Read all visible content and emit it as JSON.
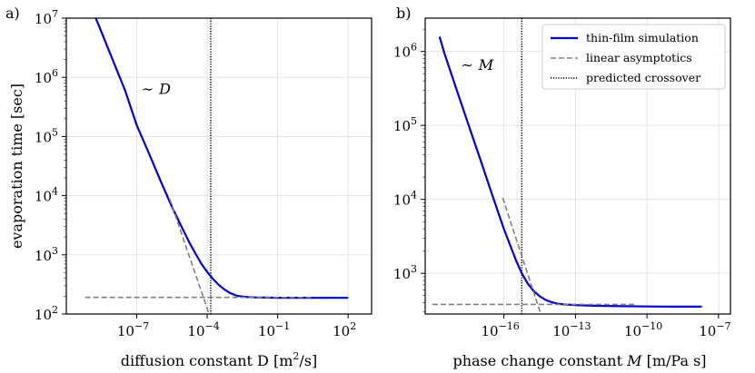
{
  "chart_data": [
    {
      "panel_label": "a)",
      "type": "line",
      "xscale": "log",
      "yscale": "log",
      "xlabel_text": "diffusion constant D [m",
      "xlabel_sup": "2",
      "xlabel_end": "/s]",
      "ylabel": "evaporation time [sec]",
      "xlim_log10": [
        -10,
        3
      ],
      "ylim_log10": [
        2,
        7
      ],
      "x_ticks": [
        {
          "exp": -7,
          "base": "10",
          "sup": "−7"
        },
        {
          "exp": -4,
          "base": "10",
          "sup": "−4"
        },
        {
          "exp": -1,
          "base": "10",
          "sup": "−1"
        },
        {
          "exp": 2,
          "base": "10",
          "sup": "2"
        }
      ],
      "y_ticks": [
        {
          "exp": 2,
          "base": "10",
          "sup": "2"
        },
        {
          "exp": 3,
          "base": "10",
          "sup": "3"
        },
        {
          "exp": 4,
          "base": "10",
          "sup": "4"
        },
        {
          "exp": 5,
          "base": "10",
          "sup": "5"
        },
        {
          "exp": 6,
          "base": "10",
          "sup": "6"
        },
        {
          "exp": 7,
          "base": "10",
          "sup": "7"
        }
      ],
      "annotation": {
        "prefix": "∼",
        "symbol": "D",
        "x_log10": -6.8,
        "y_log10": 5.72
      },
      "crossover_x_log10": -3.85,
      "series": [
        {
          "name": "thin-film simulation",
          "color": "#0000cc",
          "style": "solid",
          "x_log10": [
            -8.8,
            -8.5,
            -8,
            -7.5,
            -7,
            -6.5,
            -6,
            -5.5,
            -5,
            -4.75,
            -4.5,
            -4.25,
            -4,
            -3.75,
            -3.5,
            -3.25,
            -3,
            -2.75,
            -2.5,
            -2.25,
            -2,
            -1.5,
            -1,
            0,
            1,
            2
          ],
          "y_log10": [
            7.05,
            6.76,
            6.27,
            5.78,
            5.19,
            4.73,
            4.26,
            3.81,
            3.4,
            3.2,
            3.02,
            2.85,
            2.71,
            2.59,
            2.49,
            2.41,
            2.35,
            2.31,
            2.295,
            2.285,
            2.28,
            2.277,
            2.275,
            2.275,
            2.275,
            2.275
          ]
        },
        {
          "name": "linear asymptotics",
          "color": "#808080",
          "style": "dashed",
          "x_log10": [
            -5.6,
            -3.92
          ],
          "y_log10": [
            3.95,
            2.0
          ]
        },
        {
          "name": "linear asymptotics (plateau)",
          "color": "#808080",
          "style": "dashed",
          "x_log10": [
            -9.2,
            0.5
          ],
          "y_log10": [
            2.28,
            2.28
          ]
        }
      ]
    },
    {
      "panel_label": "b)",
      "type": "line",
      "xscale": "log",
      "yscale": "log",
      "xlabel_text": "phase change constant ",
      "xlabel_sym": "M",
      "xlabel_end": " [m/Pa s]",
      "ylabel": "",
      "xlim_log10": [
        -19.3,
        -6.5
      ],
      "ylim_log10": [
        2.45,
        6.45
      ],
      "x_ticks": [
        {
          "exp": -16,
          "base": "10",
          "sup": "−16"
        },
        {
          "exp": -13,
          "base": "10",
          "sup": "−13"
        },
        {
          "exp": -10,
          "base": "10",
          "sup": "−10"
        },
        {
          "exp": -7,
          "base": "10",
          "sup": "−7"
        }
      ],
      "y_ticks": [
        {
          "exp": 3,
          "base": "10",
          "sup": "3"
        },
        {
          "exp": 4,
          "base": "10",
          "sup": "4"
        },
        {
          "exp": 5,
          "base": "10",
          "sup": "5"
        },
        {
          "exp": 6,
          "base": "10",
          "sup": "6"
        }
      ],
      "annotation": {
        "prefix": "∼",
        "symbol": "M",
        "x_log10": -17.8,
        "y_log10": 5.75
      },
      "crossover_x_log10": -15.25,
      "series": [
        {
          "name": "thin-film simulation",
          "color": "#0000cc",
          "style": "solid",
          "x_log10": [
            -18.7,
            -18.5,
            -18,
            -17.5,
            -17,
            -16.5,
            -16,
            -15.75,
            -15.5,
            -15.25,
            -15,
            -14.75,
            -14.5,
            -14.25,
            -14,
            -13.75,
            -13.5,
            -13,
            -12.5,
            -12,
            -11,
            -10,
            -9,
            -7.7
          ],
          "y_log10": [
            6.2,
            5.98,
            5.5,
            5.02,
            4.55,
            4.07,
            3.6,
            3.39,
            3.18,
            3.0,
            2.86,
            2.76,
            2.69,
            2.64,
            2.61,
            2.59,
            2.58,
            2.57,
            2.565,
            2.56,
            2.555,
            2.552,
            2.55,
            2.55
          ]
        },
        {
          "name": "linear asymptotics",
          "color": "#808080",
          "style": "dashed",
          "x_log10": [
            -16.05,
            -14.45
          ],
          "y_log10": [
            4.02,
            2.45
          ]
        },
        {
          "name": "linear asymptotics (plateau)",
          "color": "#808080",
          "style": "dashed",
          "x_log10": [
            -19.0,
            -10.5
          ],
          "y_log10": [
            2.58,
            2.58
          ]
        }
      ],
      "legend": {
        "placement": "top-right",
        "entries": [
          {
            "label": "thin-film simulation",
            "color": "#0000cc",
            "style": "solid"
          },
          {
            "label": "linear asymptotics",
            "color": "#808080",
            "style": "dashed"
          },
          {
            "label": "predicted crossover",
            "color": "#000000",
            "style": "dotted"
          }
        ]
      }
    }
  ]
}
